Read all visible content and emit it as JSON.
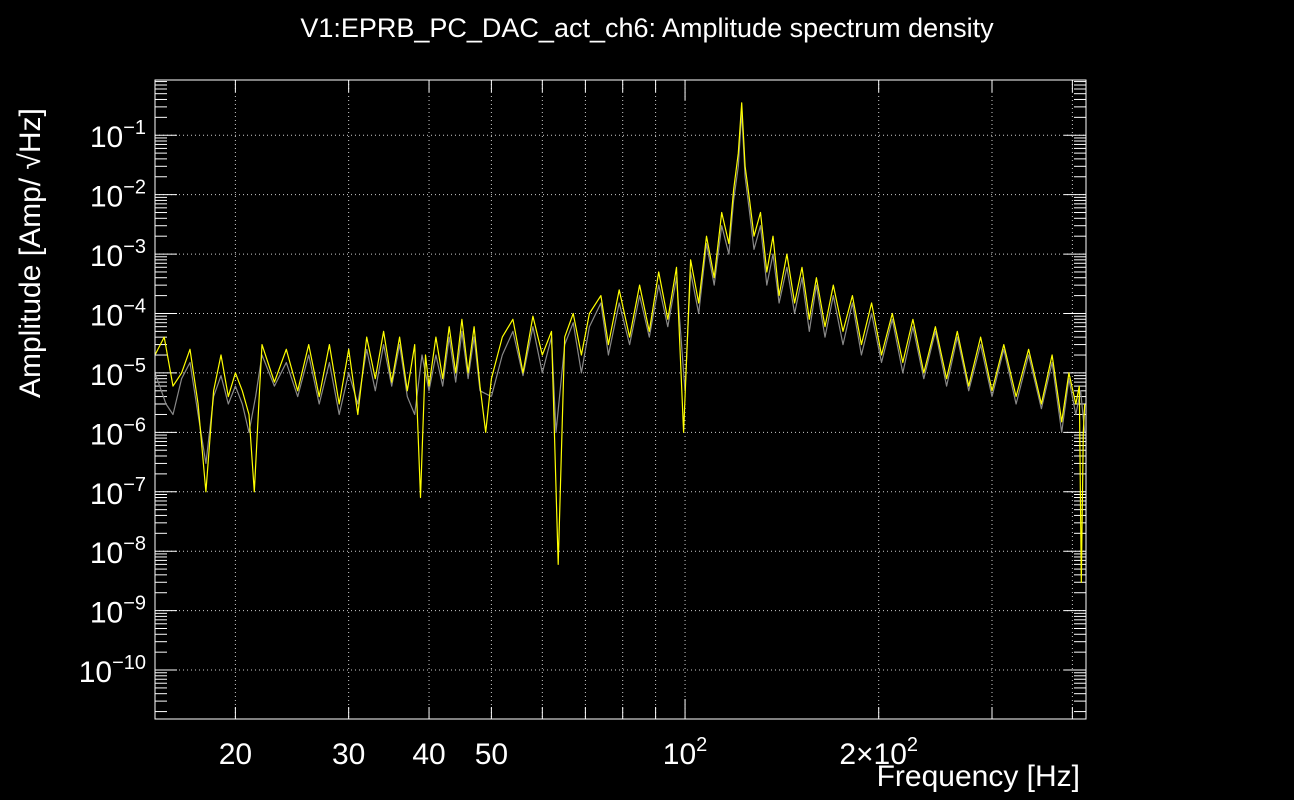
{
  "chart_data": {
    "type": "line",
    "title": "V1:EPRB_PC_DAC_act_ch6: Amplitude spectrum density",
    "xlabel": "Frequency [Hz]",
    "ylabel": "Amplitude [Amp/ √Hz]",
    "x_scale": "log",
    "y_scale": "log",
    "xlim": [
      15,
      420
    ],
    "ylim": [
      1.5e-11,
      0.85
    ],
    "grid": true,
    "background": "#000000",
    "x_ticks": [
      {
        "value": 20,
        "label": "20"
      },
      {
        "value": 30,
        "label": "30"
      },
      {
        "value": 40,
        "label": "40"
      },
      {
        "value": 50,
        "label": "50"
      },
      {
        "value": 100,
        "label": "10",
        "exp": "2"
      },
      {
        "value": 200,
        "label": "2×10",
        "exp": "2"
      }
    ],
    "y_ticks": [
      {
        "value": 1e-10,
        "label": "10",
        "exp": "−10"
      },
      {
        "value": 1e-09,
        "label": "10",
        "exp": "−9"
      },
      {
        "value": 1e-08,
        "label": "10",
        "exp": "−8"
      },
      {
        "value": 1e-07,
        "label": "10",
        "exp": "−7"
      },
      {
        "value": 1e-06,
        "label": "10",
        "exp": "−6"
      },
      {
        "value": 1e-05,
        "label": "10",
        "exp": "−5"
      },
      {
        "value": 0.0001,
        "label": "10",
        "exp": "−4"
      },
      {
        "value": 0.001,
        "label": "10",
        "exp": "−3"
      },
      {
        "value": 0.01,
        "label": "10",
        "exp": "−2"
      },
      {
        "value": 0.1,
        "label": "10",
        "exp": "−1"
      }
    ],
    "series": [
      {
        "color": "#888888",
        "points": [
          [
            15,
            1e-05
          ],
          [
            15.6,
            3e-06
          ],
          [
            16,
            2e-06
          ],
          [
            16.5,
            8e-06
          ],
          [
            17,
            1.5e-05
          ],
          [
            17.5,
            2e-06
          ],
          [
            18,
            3e-07
          ],
          [
            18.5,
            4e-06
          ],
          [
            19,
            9e-06
          ],
          [
            19.5,
            3e-06
          ],
          [
            20,
            6e-06
          ],
          [
            20.5,
            3e-06
          ],
          [
            21,
            1e-06
          ],
          [
            21.5,
            4e-06
          ],
          [
            22,
            2e-05
          ],
          [
            23,
            6e-06
          ],
          [
            24,
            1.5e-05
          ],
          [
            25,
            4e-06
          ],
          [
            26,
            2e-05
          ],
          [
            27,
            3e-06
          ],
          [
            28,
            1.5e-05
          ],
          [
            29,
            2e-06
          ],
          [
            30,
            1e-05
          ],
          [
            31,
            3e-06
          ],
          [
            32,
            2.5e-05
          ],
          [
            33,
            5e-06
          ],
          [
            34,
            3e-05
          ],
          [
            35,
            6e-06
          ],
          [
            36,
            3e-05
          ],
          [
            37,
            4e-06
          ],
          [
            38,
            2e-06
          ],
          [
            39,
            2e-05
          ],
          [
            40,
            5e-06
          ],
          [
            41,
            2e-05
          ],
          [
            42,
            6e-06
          ],
          [
            43,
            4e-05
          ],
          [
            44,
            7e-06
          ],
          [
            45,
            5e-05
          ],
          [
            46,
            8e-06
          ],
          [
            47,
            4e-05
          ],
          [
            48,
            5e-06
          ],
          [
            50,
            4e-06
          ],
          [
            52,
            2e-05
          ],
          [
            54,
            5e-05
          ],
          [
            56,
            9e-06
          ],
          [
            58,
            6e-05
          ],
          [
            60,
            1e-05
          ],
          [
            62,
            4e-05
          ],
          [
            63,
            1e-06
          ],
          [
            65,
            3e-05
          ],
          [
            67,
            7e-05
          ],
          [
            69,
            1e-05
          ],
          [
            71,
            6e-05
          ],
          [
            74,
            0.00015
          ],
          [
            76,
            2e-05
          ],
          [
            79,
            0.00015
          ],
          [
            82,
            3e-05
          ],
          [
            85,
            0.0002
          ],
          [
            88,
            4e-05
          ],
          [
            91,
            0.0003
          ],
          [
            94,
            6e-05
          ],
          [
            97,
            0.0004
          ],
          [
            100,
            5e-06
          ],
          [
            102,
            0.0005
          ],
          [
            105,
            0.0001
          ],
          [
            108,
            0.0015
          ],
          [
            111,
            0.0003
          ],
          [
            114,
            0.003
          ],
          [
            117,
            0.001
          ],
          [
            119,
            0.008
          ],
          [
            121,
            0.03
          ],
          [
            122.5,
            0.25
          ],
          [
            124,
            0.02
          ],
          [
            126,
            0.005
          ],
          [
            128,
            0.0012
          ],
          [
            131,
            0.003
          ],
          [
            134,
            0.0003
          ],
          [
            137,
            0.001
          ],
          [
            140,
            0.00015
          ],
          [
            144,
            0.0006
          ],
          [
            148,
            0.0001
          ],
          [
            152,
            0.0004
          ],
          [
            156,
            5e-05
          ],
          [
            160,
            0.0003
          ],
          [
            165,
            4e-05
          ],
          [
            170,
            0.0002
          ],
          [
            176,
            3e-05
          ],
          [
            182,
            0.00015
          ],
          [
            188,
            2e-05
          ],
          [
            195,
            0.0001
          ],
          [
            202,
            1.5e-05
          ],
          [
            210,
            8e-05
          ],
          [
            218,
            1e-05
          ],
          [
            226,
            6e-05
          ],
          [
            235,
            8e-06
          ],
          [
            245,
            5e-05
          ],
          [
            255,
            6e-06
          ],
          [
            265,
            4e-05
          ],
          [
            276,
            5e-06
          ],
          [
            288,
            3e-05
          ],
          [
            300,
            4e-06
          ],
          [
            313,
            2.5e-05
          ],
          [
            327,
            3e-06
          ],
          [
            342,
            2e-05
          ],
          [
            358,
            2.5e-06
          ],
          [
            372,
            1.5e-05
          ],
          [
            385,
            1e-06
          ],
          [
            395,
            8e-06
          ],
          [
            405,
            2e-06
          ],
          [
            412,
            5e-06
          ],
          [
            418,
            1e-06
          ]
        ]
      },
      {
        "color": "#ffff00",
        "points": [
          [
            15,
            2e-05
          ],
          [
            15.5,
            4e-05
          ],
          [
            16,
            6e-06
          ],
          [
            16.5,
            1e-05
          ],
          [
            17,
            2.5e-05
          ],
          [
            17.5,
            3e-06
          ],
          [
            18,
            1e-07
          ],
          [
            18.5,
            5e-06
          ],
          [
            19,
            2e-05
          ],
          [
            19.5,
            4e-06
          ],
          [
            20,
            1e-05
          ],
          [
            20.5,
            5e-06
          ],
          [
            21,
            2e-06
          ],
          [
            21.4,
            1e-07
          ],
          [
            21.8,
            5e-06
          ],
          [
            22,
            3e-05
          ],
          [
            23,
            7e-06
          ],
          [
            24,
            2.5e-05
          ],
          [
            25,
            5e-06
          ],
          [
            26,
            3e-05
          ],
          [
            27,
            4e-06
          ],
          [
            28,
            3e-05
          ],
          [
            29,
            3e-06
          ],
          [
            30,
            2.5e-05
          ],
          [
            31,
            2e-06
          ],
          [
            32,
            4e-05
          ],
          [
            33,
            8e-06
          ],
          [
            34,
            5e-05
          ],
          [
            35,
            7e-06
          ],
          [
            36,
            4e-05
          ],
          [
            37,
            5e-06
          ],
          [
            38,
            3e-05
          ],
          [
            38.8,
            8e-08
          ],
          [
            39.5,
            2e-05
          ],
          [
            40,
            6e-06
          ],
          [
            41,
            4e-05
          ],
          [
            42,
            8e-06
          ],
          [
            43,
            6e-05
          ],
          [
            44,
            1e-05
          ],
          [
            45,
            8e-05
          ],
          [
            46,
            1e-05
          ],
          [
            47,
            6e-05
          ],
          [
            48,
            6e-06
          ],
          [
            49,
            1e-06
          ],
          [
            50,
            8e-06
          ],
          [
            52,
            4e-05
          ],
          [
            54,
            8e-05
          ],
          [
            56,
            1e-05
          ],
          [
            58,
            9e-05
          ],
          [
            60,
            2e-05
          ],
          [
            62,
            5e-05
          ],
          [
            63.5,
            6e-09
          ],
          [
            65,
            4e-05
          ],
          [
            67,
            0.0001
          ],
          [
            69,
            2e-05
          ],
          [
            71,
            0.0001
          ],
          [
            74,
            0.0002
          ],
          [
            76,
            3e-05
          ],
          [
            79,
            0.00025
          ],
          [
            82,
            4e-05
          ],
          [
            85,
            0.0003
          ],
          [
            88,
            5e-05
          ],
          [
            91,
            0.0005
          ],
          [
            94,
            8e-05
          ],
          [
            97,
            0.0006
          ],
          [
            99.5,
            1e-06
          ],
          [
            102,
            0.0008
          ],
          [
            105,
            0.00015
          ],
          [
            108,
            0.002
          ],
          [
            111,
            0.0004
          ],
          [
            114,
            0.005
          ],
          [
            117,
            0.0015
          ],
          [
            119,
            0.012
          ],
          [
            121,
            0.05
          ],
          [
            122.5,
            0.35
          ],
          [
            124,
            0.03
          ],
          [
            126,
            0.008
          ],
          [
            128,
            0.002
          ],
          [
            131,
            0.005
          ],
          [
            134,
            0.0005
          ],
          [
            137,
            0.002
          ],
          [
            140,
            0.0002
          ],
          [
            144,
            0.001
          ],
          [
            148,
            0.00015
          ],
          [
            152,
            0.0006
          ],
          [
            156,
            8e-05
          ],
          [
            160,
            0.0004
          ],
          [
            165,
            6e-05
          ],
          [
            170,
            0.0003
          ],
          [
            176,
            5e-05
          ],
          [
            182,
            0.0002
          ],
          [
            188,
            3e-05
          ],
          [
            195,
            0.00015
          ],
          [
            202,
            2e-05
          ],
          [
            210,
            0.0001
          ],
          [
            218,
            1.5e-05
          ],
          [
            226,
            8e-05
          ],
          [
            235,
            1e-05
          ],
          [
            245,
            6e-05
          ],
          [
            255,
            8e-06
          ],
          [
            265,
            5e-05
          ],
          [
            276,
            6e-06
          ],
          [
            288,
            4e-05
          ],
          [
            300,
            5e-06
          ],
          [
            313,
            3e-05
          ],
          [
            327,
            4e-06
          ],
          [
            342,
            2.5e-05
          ],
          [
            358,
            3e-06
          ],
          [
            372,
            2e-05
          ],
          [
            385,
            1.5e-06
          ],
          [
            395,
            1e-05
          ],
          [
            405,
            3e-06
          ],
          [
            410,
            6e-06
          ],
          [
            413,
            3e-09
          ],
          [
            416,
            1e-06
          ],
          [
            418,
            3e-06
          ]
        ]
      }
    ]
  }
}
